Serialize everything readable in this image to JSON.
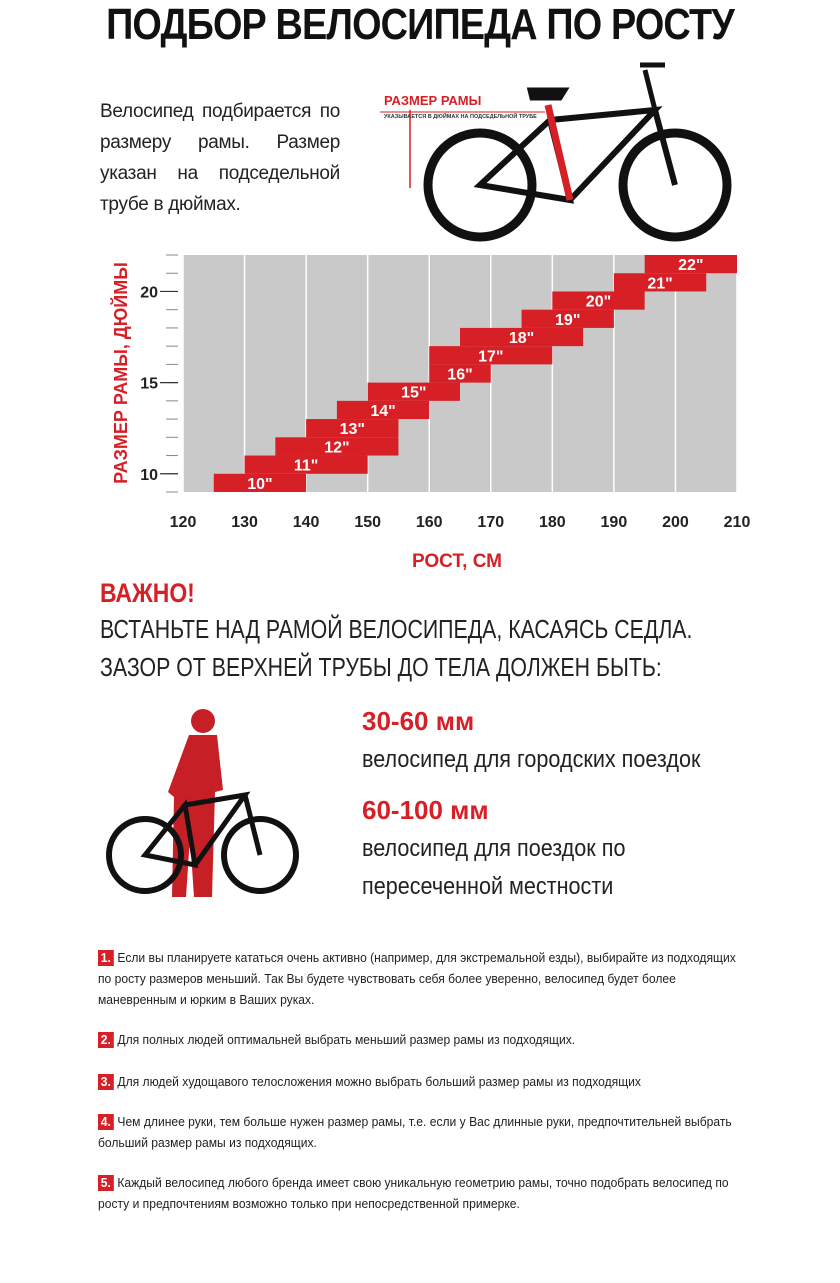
{
  "header": {
    "title": "ПОДБОР ВЕЛОСИПЕДА ПО РОСТУ",
    "intro": "Велосипед подбирается по размеру рамы. Размер указан на подседельной трубе в дюймах.",
    "frame_label": "РАЗМЕР РАМЫ",
    "frame_note": "УКАЗЫВАЕТСЯ В ДЮЙМАХ НА ПОДСЕДЕЛЬНОЙ ТРУБЕ"
  },
  "chart_data": {
    "type": "range_bar",
    "y_label": "РАЗМЕР РАМЫ, ДЮЙМЫ",
    "x_label": "РОСТ, СМ",
    "categories": [
      "10\"",
      "11\"",
      "12\"",
      "13\"",
      "14\"",
      "15\"",
      "16\"",
      "17\"",
      "18\"",
      "19\"",
      "20\"",
      "21\"",
      "22\""
    ],
    "sizes": [
      10,
      11,
      12,
      13,
      14,
      15,
      16,
      17,
      18,
      19,
      20,
      21,
      22
    ],
    "start": [
      125,
      130,
      135,
      140,
      145,
      150,
      160,
      160,
      165,
      175,
      180,
      190,
      195
    ],
    "end": [
      140,
      150,
      155,
      155,
      160,
      165,
      170,
      180,
      185,
      190,
      195,
      205,
      210
    ],
    "color": "#d71f26",
    "background": "#c9c9c9",
    "xlim": [
      120,
      210
    ],
    "xticks": [
      120,
      130,
      140,
      150,
      160,
      170,
      180,
      190,
      200,
      210
    ],
    "ylim": [
      9,
      22
    ],
    "yticks": [
      10,
      15,
      20
    ],
    "y_minor_ticks": [
      9,
      10,
      11,
      12,
      13,
      14,
      15,
      16,
      17,
      18,
      19,
      20,
      21,
      22
    ],
    "grid": true
  },
  "important": {
    "heading": "ВАЖНО!",
    "lines": [
      "ВСТАНЬТЕ НАД РАМОЙ ВЕЛОСИПЕДА, КАСАЯСЬ СЕДЛА.",
      "ЗАЗОР ОТ ВЕРХНЕЙ ТРУБЫ ДО ТЕЛА ДОЛЖЕН БЫТЬ:"
    ]
  },
  "options": [
    {
      "range": "30-60 мм",
      "description": "велосипед для городских поездок"
    },
    {
      "range": "60-100 мм",
      "description": "велосипед для поездок по пересеченной местности"
    }
  ],
  "notes": [
    {
      "number": "1.",
      "text": "Если вы планируете кататься очень активно (например, для экстремальной езды), выбирайте из подходящих по росту размеров меньший. Так Вы будете чувствовать себя более уверенно, велосипед будет более маневренным и юрким в Ваших руках."
    },
    {
      "number": "2.",
      "text": "Для полных людей оптимальней выбрать меньший размер рамы из подходящих."
    },
    {
      "number": "3.",
      "text": "Для людей худощавого телосложения можно выбрать больший размер рамы из подходящих"
    },
    {
      "number": "4.",
      "text": "Чем длинее руки, тем больше нужен размер рамы, т.е. если у Вас длинные руки, предпочтительней выбрать больший размер рамы из подходящих."
    },
    {
      "number": "5.",
      "text": "Каждый велосипед любого бренда имеет свою уникальную геометрию рамы, точно подобрать велосипед по росту и предпочтениям возможно только при непосредственной примерке."
    }
  ]
}
